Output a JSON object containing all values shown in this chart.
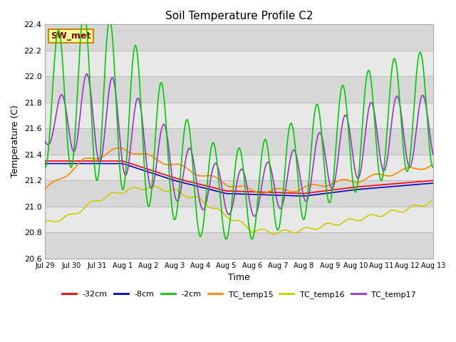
{
  "title": "Soil Temperature Profile C2",
  "xlabel": "Time",
  "ylabel": "Temperature (C)",
  "ylim": [
    20.6,
    22.4
  ],
  "xlim": [
    0,
    15
  ],
  "background_color": "#ffffff",
  "plot_bg_color": "#e8e8e8",
  "annotation_text": "SW_met",
  "annotation_bg": "#ffff99",
  "annotation_border": "#cc8800",
  "annotation_text_color": "#8b0000",
  "series": [
    {
      "label": "-32cm",
      "color": "#ff0000"
    },
    {
      "label": "-8cm",
      "color": "#0000cc"
    },
    {
      "label": "-2cm",
      "color": "#00cc00"
    },
    {
      "label": "TC_temp15",
      "color": "#ff8800"
    },
    {
      "label": "TC_temp16",
      "color": "#cccc00"
    },
    {
      "label": "TC_temp17",
      "color": "#9933cc"
    }
  ],
  "xtick_labels": [
    "Jul 29",
    "Jul 30",
    "Jul 31",
    "Aug 1",
    "Aug 2",
    "Aug 3",
    "Aug 4",
    "Aug 5",
    "Aug 6",
    "Aug 7",
    "Aug 8",
    "Aug 9",
    "Aug 10",
    "Aug 11",
    "Aug 12",
    "Aug 13"
  ],
  "yticks": [
    20.6,
    20.8,
    21.0,
    21.2,
    21.4,
    21.6,
    21.8,
    22.0,
    22.2,
    22.4
  ],
  "line_width": 1.2,
  "stripe_colors": [
    "#e0e0e0",
    "#d0d0d0"
  ]
}
